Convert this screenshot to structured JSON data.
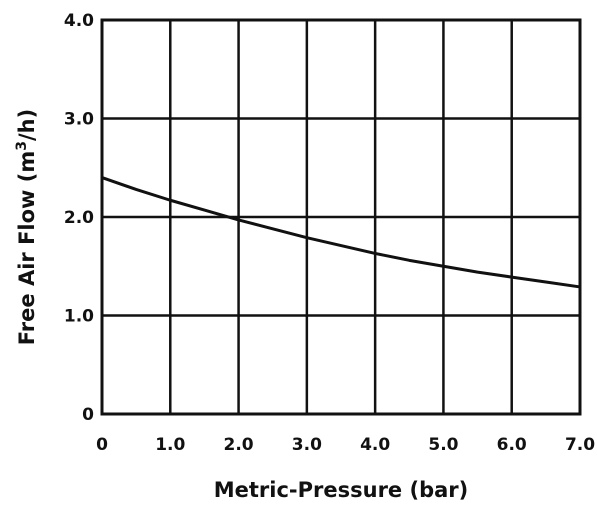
{
  "chart_data": {
    "type": "line",
    "xlabel": "Metric-Pressure (bar)",
    "ylabel": {
      "prefix": "Free Air Flow (m",
      "superscript": "3",
      "suffix": "/h)"
    },
    "xlim": [
      0,
      7
    ],
    "ylim": [
      0,
      4
    ],
    "xticks": [
      "0",
      "1.0",
      "2.0",
      "3.0",
      "4.0",
      "5.0",
      "6.0",
      "7.0"
    ],
    "yticks": [
      "0",
      "1.0",
      "2.0",
      "3.0",
      "4.0"
    ],
    "grid": true,
    "series": [
      {
        "x": [
          0,
          0.5,
          1.0,
          1.5,
          2.0,
          2.5,
          3.0,
          3.5,
          4.0,
          4.5,
          5.0,
          5.5,
          6.0,
          6.5,
          7.0
        ],
        "values": [
          2.4,
          2.28,
          2.17,
          2.07,
          1.97,
          1.88,
          1.79,
          1.71,
          1.63,
          1.56,
          1.5,
          1.44,
          1.39,
          1.34,
          1.29
        ]
      }
    ]
  }
}
